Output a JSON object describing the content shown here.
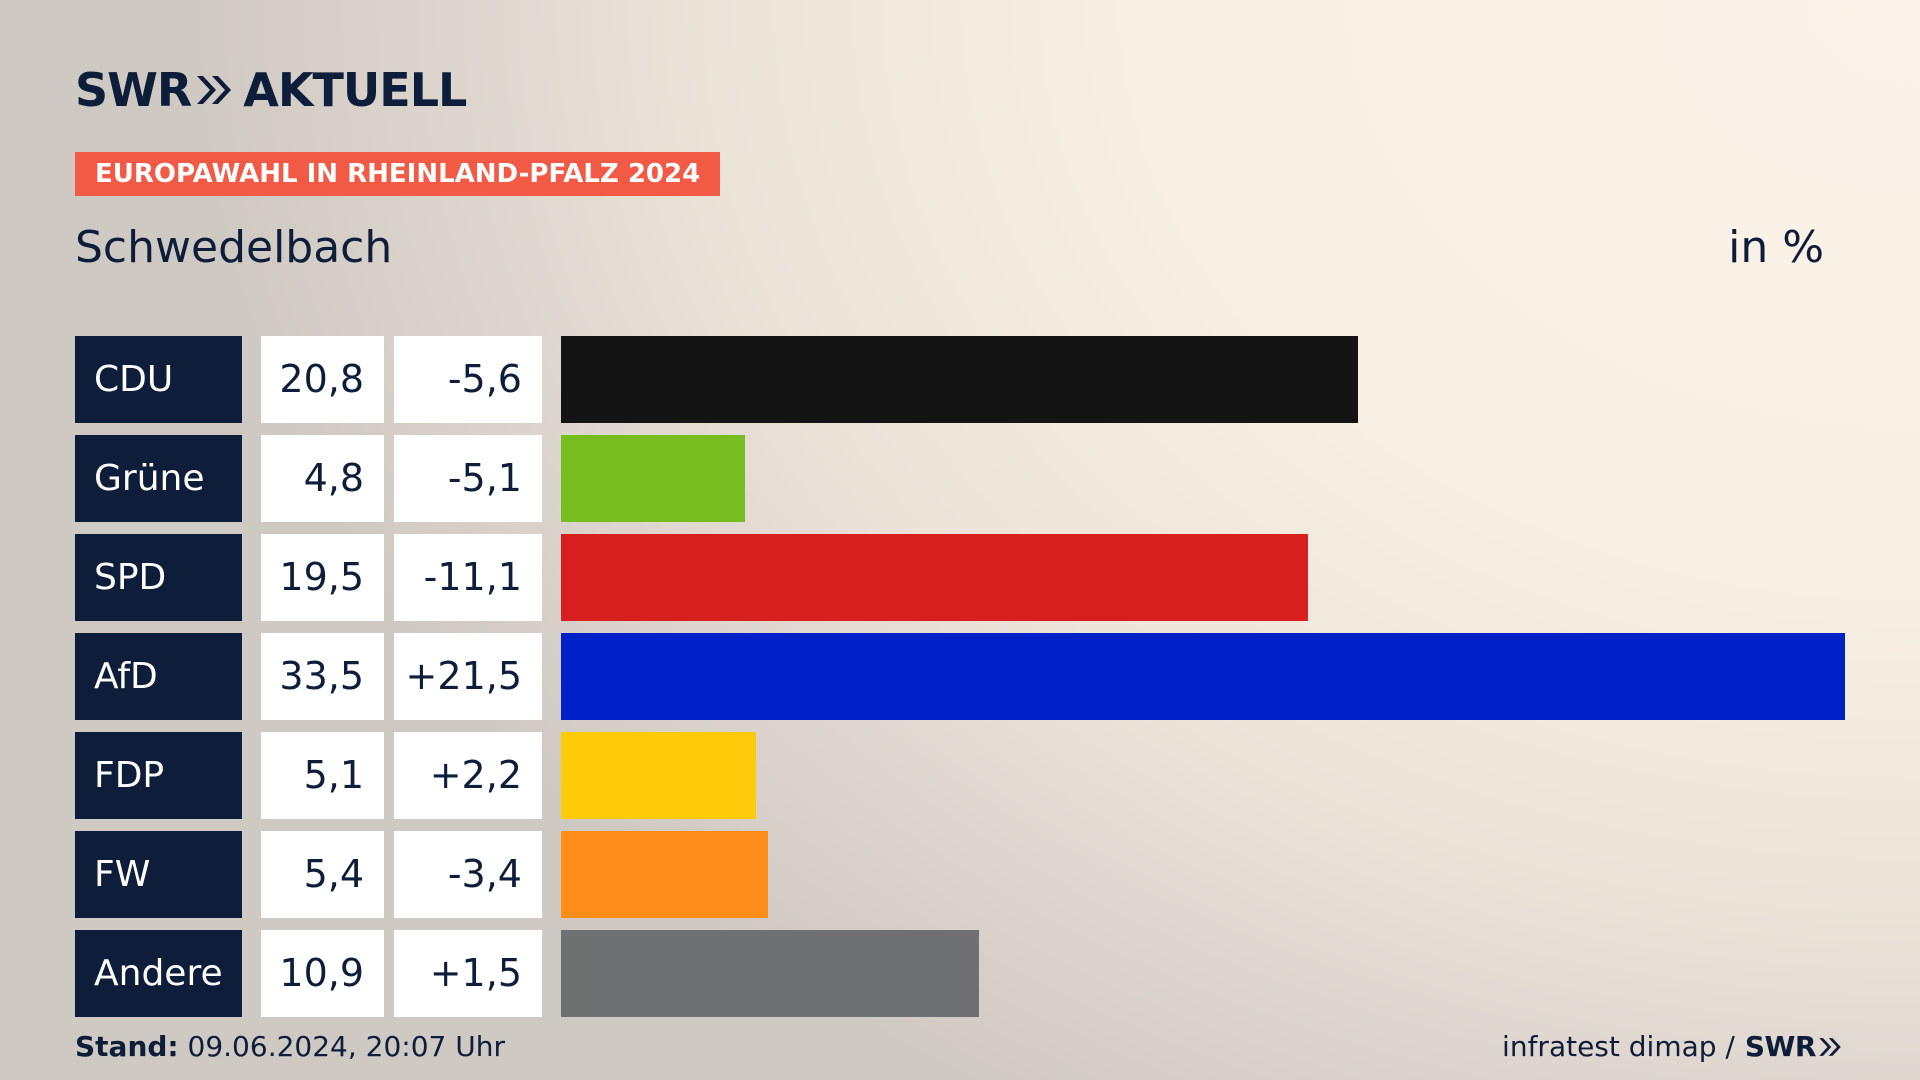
{
  "header": {
    "logo_text_left": "SWR",
    "logo_text_right": "AKTUELL",
    "badge": "EUROPAWAHL IN RHEINLAND-PFALZ 2024",
    "place": "Schwedelbach",
    "unit": "in %"
  },
  "chart_data": {
    "type": "bar",
    "orientation": "horizontal",
    "categories": [
      "CDU",
      "Grüne",
      "SPD",
      "AfD",
      "FDP",
      "FW",
      "Andere"
    ],
    "values": [
      20.8,
      4.8,
      19.5,
      33.5,
      5.1,
      5.4,
      10.9
    ],
    "value_labels": [
      "20,8",
      "4,8",
      "19,5",
      "33,5",
      "5,1",
      "5,4",
      "10,9"
    ],
    "diff_labels": [
      "-5,6",
      "-5,1",
      "-11,1",
      "+21,5",
      "+2,2",
      "-3,4",
      "+1,5"
    ],
    "colors": [
      "#141414",
      "#78bd1f",
      "#d81f1f",
      "#0021c8",
      "#fecb0a",
      "#fe8d19",
      "#6f7071"
    ],
    "xlim": [
      0,
      33.5
    ],
    "title": "Schwedelbach",
    "xlabel": "",
    "ylabel": "in %"
  },
  "footer": {
    "stand_label": "Stand:",
    "stand_value": "09.06.2024, 20:07 Uhr",
    "source": "infratest dimap /",
    "source_logo": "SWR"
  }
}
